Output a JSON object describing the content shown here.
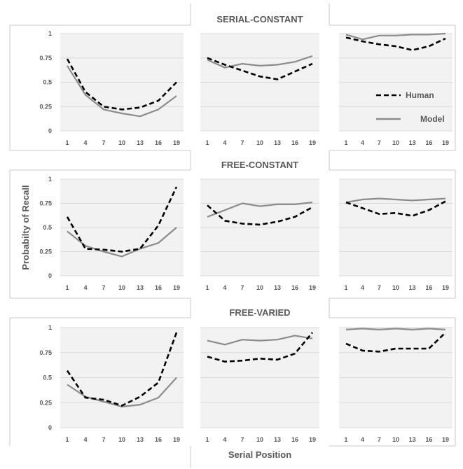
{
  "figure": {
    "row_titles": [
      "SERIAL-CONSTANT",
      "FREE-CONSTANT",
      "FREE-VARIED"
    ],
    "ylabel": "Probabilty of Recall",
    "xlabel": "Serial Position",
    "legend": [
      {
        "name": "Human",
        "color": "#000000",
        "dash": true
      },
      {
        "name": "Model",
        "color": "#8c8c8c",
        "dash": false
      }
    ],
    "plot_bg": "#f2f2f2"
  },
  "chart_data": [
    {
      "type": "line",
      "row": 0,
      "col": 0,
      "x": [
        1,
        4,
        7,
        10,
        13,
        16,
        19
      ],
      "ylim": [
        0,
        1
      ],
      "yticks": [
        "0",
        "0.25",
        "0.5",
        "0.75",
        "1"
      ],
      "series": [
        {
          "name": "Human",
          "values": [
            0.74,
            0.4,
            0.25,
            0.22,
            0.24,
            0.31,
            0.5
          ]
        },
        {
          "name": "Model",
          "values": [
            0.67,
            0.37,
            0.22,
            0.18,
            0.15,
            0.22,
            0.36
          ]
        }
      ]
    },
    {
      "type": "line",
      "row": 0,
      "col": 1,
      "x": [
        1,
        4,
        7,
        10,
        13,
        16,
        19
      ],
      "ylim": [
        0,
        1
      ],
      "yticks": [],
      "series": [
        {
          "name": "Human",
          "values": [
            0.75,
            0.68,
            0.62,
            0.56,
            0.53,
            0.61,
            0.69
          ]
        },
        {
          "name": "Model",
          "values": [
            0.73,
            0.65,
            0.69,
            0.67,
            0.68,
            0.71,
            0.77
          ]
        }
      ]
    },
    {
      "type": "line",
      "row": 0,
      "col": 2,
      "x": [
        1,
        4,
        7,
        10,
        13,
        16,
        19
      ],
      "ylim": [
        0,
        1
      ],
      "yticks": [],
      "series": [
        {
          "name": "Human",
          "values": [
            0.96,
            0.92,
            0.89,
            0.87,
            0.83,
            0.87,
            0.95
          ]
        },
        {
          "name": "Model",
          "values": [
            0.99,
            0.94,
            0.98,
            0.98,
            0.99,
            0.99,
            1.0
          ]
        }
      ]
    },
    {
      "type": "line",
      "row": 1,
      "col": 0,
      "x": [
        1,
        4,
        7,
        10,
        13,
        16,
        19
      ],
      "ylim": [
        0,
        1
      ],
      "yticks": [
        "0",
        "0.25",
        "0.5",
        "0.75",
        "1"
      ],
      "series": [
        {
          "name": "Human",
          "values": [
            0.61,
            0.28,
            0.27,
            0.25,
            0.28,
            0.52,
            0.92
          ]
        },
        {
          "name": "Model",
          "values": [
            0.46,
            0.31,
            0.25,
            0.2,
            0.28,
            0.34,
            0.5
          ]
        }
      ]
    },
    {
      "type": "line",
      "row": 1,
      "col": 1,
      "x": [
        1,
        4,
        7,
        10,
        13,
        16,
        19
      ],
      "ylim": [
        0,
        1
      ],
      "yticks": [],
      "series": [
        {
          "name": "Human",
          "values": [
            0.73,
            0.57,
            0.54,
            0.53,
            0.56,
            0.61,
            0.71
          ]
        },
        {
          "name": "Model",
          "values": [
            0.61,
            0.68,
            0.75,
            0.72,
            0.74,
            0.74,
            0.76
          ]
        }
      ]
    },
    {
      "type": "line",
      "row": 1,
      "col": 2,
      "x": [
        1,
        4,
        7,
        10,
        13,
        16,
        19
      ],
      "ylim": [
        0,
        1
      ],
      "yticks": [],
      "series": [
        {
          "name": "Human",
          "values": [
            0.76,
            0.7,
            0.64,
            0.65,
            0.62,
            0.68,
            0.77
          ]
        },
        {
          "name": "Model",
          "values": [
            0.76,
            0.79,
            0.8,
            0.79,
            0.78,
            0.79,
            0.8
          ]
        }
      ]
    },
    {
      "type": "line",
      "row": 2,
      "col": 0,
      "x": [
        1,
        4,
        7,
        10,
        13,
        16,
        19
      ],
      "ylim": [
        0,
        1
      ],
      "yticks": [
        "0",
        "0.25",
        "0.5",
        "0.75",
        "1"
      ],
      "series": [
        {
          "name": "Human",
          "values": [
            0.57,
            0.3,
            0.28,
            0.22,
            0.31,
            0.45,
            0.95
          ]
        },
        {
          "name": "Model",
          "values": [
            0.43,
            0.31,
            0.26,
            0.21,
            0.23,
            0.3,
            0.5
          ]
        }
      ]
    },
    {
      "type": "line",
      "row": 2,
      "col": 1,
      "x": [
        1,
        4,
        7,
        10,
        13,
        16,
        19
      ],
      "ylim": [
        0,
        1
      ],
      "yticks": [],
      "series": [
        {
          "name": "Human",
          "values": [
            0.71,
            0.66,
            0.67,
            0.69,
            0.68,
            0.74,
            0.95
          ]
        },
        {
          "name": "Model",
          "values": [
            0.87,
            0.83,
            0.88,
            0.87,
            0.88,
            0.92,
            0.89
          ]
        }
      ]
    },
    {
      "type": "line",
      "row": 2,
      "col": 2,
      "x": [
        1,
        4,
        7,
        10,
        13,
        16,
        19
      ],
      "ylim": [
        0,
        1
      ],
      "yticks": [],
      "series": [
        {
          "name": "Human",
          "values": [
            0.84,
            0.77,
            0.76,
            0.79,
            0.79,
            0.79,
            0.95
          ]
        },
        {
          "name": "Model",
          "values": [
            0.98,
            0.99,
            0.98,
            0.99,
            0.98,
            0.99,
            0.98
          ]
        }
      ]
    }
  ]
}
